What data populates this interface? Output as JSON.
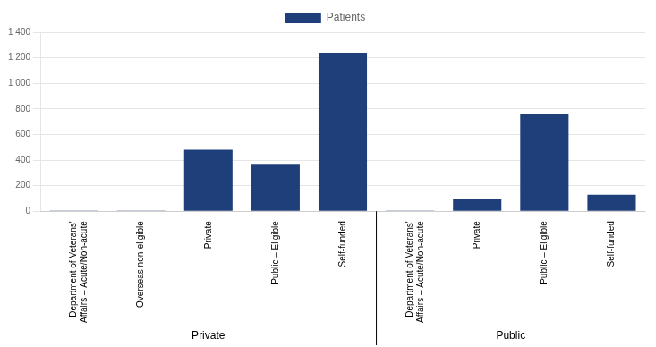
{
  "chart_data": {
    "type": "bar",
    "categories": [
      "Department of Veterans'\nAffairs – Acute/Non-acute",
      "Overseas non-eligible",
      "Private",
      "Public – Eligible",
      "Self-funded",
      "Department of Veterans'\nAffairs – Acute/Non-acute",
      "Private",
      "Public – Eligible",
      "Self-funded"
    ],
    "series": [
      {
        "name": "Patients",
        "color": "#1F3F7A",
        "values": [
          2,
          2,
          480,
          370,
          1240,
          2,
          100,
          760,
          130
        ]
      }
    ],
    "groups": [
      {
        "name": "Private",
        "start": 0,
        "end": 4
      },
      {
        "name": "Public",
        "start": 5,
        "end": 8
      }
    ],
    "ylim": [
      0,
      1400
    ],
    "yticks": [
      0,
      200,
      400,
      600,
      800,
      {
        "value": 1000,
        "label": "1 000"
      },
      {
        "value": 1200,
        "label": "1 200"
      },
      {
        "value": 1400,
        "label": "1 400"
      }
    ],
    "grid": true,
    "legend": "top"
  }
}
